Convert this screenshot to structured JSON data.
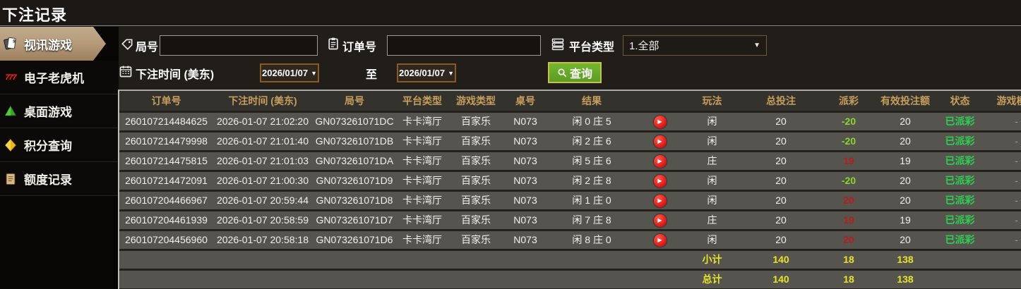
{
  "page": {
    "title": "下注记录"
  },
  "sidebar": {
    "items": [
      {
        "id": "video-games",
        "label": "视讯游戏",
        "icon": "playing-cards-icon",
        "active": true
      },
      {
        "id": "slots",
        "label": "电子老虎机",
        "icon": "slot-777-icon",
        "active": false
      },
      {
        "id": "table-games",
        "label": "桌面游戏",
        "icon": "table-games-icon",
        "active": false
      },
      {
        "id": "points-query",
        "label": "积分查询",
        "icon": "points-gem-icon",
        "active": false
      },
      {
        "id": "credit-records",
        "label": "额度记录",
        "icon": "credit-notepad-icon",
        "active": false
      }
    ]
  },
  "filters": {
    "round_label": "局号",
    "round_value": "",
    "order_label": "订单号",
    "order_value": "",
    "platform_label": "平台类型",
    "platform_value": "1.全部",
    "time_label": "下注时间 (美东)",
    "date_from": "2026/01/07",
    "to_label": "至",
    "date_to": "2026/01/07",
    "search_label": "查询"
  },
  "table": {
    "headers": [
      {
        "key": "order_no",
        "label": "订单号"
      },
      {
        "key": "bet_time",
        "label": "下注时间 (美东)"
      },
      {
        "key": "round_no",
        "label": "局号"
      },
      {
        "key": "platform",
        "label": "平台类型"
      },
      {
        "key": "game_type",
        "label": "游戏类型"
      },
      {
        "key": "table_no",
        "label": "桌号"
      },
      {
        "key": "result",
        "label": "结果"
      },
      {
        "key": "replay",
        "label": ""
      },
      {
        "key": "play",
        "label": "玩法"
      },
      {
        "key": "total_bet",
        "label": "总投注"
      },
      {
        "key": "payout",
        "label": "派彩"
      },
      {
        "key": "valid_bet",
        "label": "有效投注额"
      },
      {
        "key": "status",
        "label": "状态"
      },
      {
        "key": "game_mode",
        "label": "游戏模式"
      }
    ],
    "rows": [
      {
        "order_no": "260107214484625",
        "bet_time": "2026-01-07 21:02:20",
        "round_no": "GN073261071DC",
        "platform": "卡卡湾厅",
        "game_type": "百家乐",
        "table_no": "N073",
        "result": "闲 0 庄 5",
        "play": "闲",
        "total_bet": "20",
        "payout": "-20",
        "payout_color": "green",
        "valid_bet": "20",
        "status": "已派彩",
        "game_mode": "-"
      },
      {
        "order_no": "260107214479998",
        "bet_time": "2026-01-07 21:01:40",
        "round_no": "GN073261071DB",
        "platform": "卡卡湾厅",
        "game_type": "百家乐",
        "table_no": "N073",
        "result": "闲 2 庄 6",
        "play": "闲",
        "total_bet": "20",
        "payout": "-20",
        "payout_color": "green",
        "valid_bet": "20",
        "status": "已派彩",
        "game_mode": "-"
      },
      {
        "order_no": "260107214475815",
        "bet_time": "2026-01-07 21:01:03",
        "round_no": "GN073261071DA",
        "platform": "卡卡湾厅",
        "game_type": "百家乐",
        "table_no": "N073",
        "result": "闲 5 庄 6",
        "play": "庄",
        "total_bet": "20",
        "payout": "19",
        "payout_color": "red",
        "valid_bet": "19",
        "status": "已派彩",
        "game_mode": "-"
      },
      {
        "order_no": "260107214472091",
        "bet_time": "2026-01-07 21:00:30",
        "round_no": "GN073261071D9",
        "platform": "卡卡湾厅",
        "game_type": "百家乐",
        "table_no": "N073",
        "result": "闲 2 庄 8",
        "play": "闲",
        "total_bet": "20",
        "payout": "-20",
        "payout_color": "green",
        "valid_bet": "20",
        "status": "已派彩",
        "game_mode": "-"
      },
      {
        "order_no": "260107204466967",
        "bet_time": "2026-01-07 20:59:44",
        "round_no": "GN073261071D8",
        "platform": "卡卡湾厅",
        "game_type": "百家乐",
        "table_no": "N073",
        "result": "闲 1 庄 0",
        "play": "闲",
        "total_bet": "20",
        "payout": "20",
        "payout_color": "red",
        "valid_bet": "20",
        "status": "已派彩",
        "game_mode": "-"
      },
      {
        "order_no": "260107204461939",
        "bet_time": "2026-01-07 20:58:59",
        "round_no": "GN073261071D7",
        "platform": "卡卡湾厅",
        "game_type": "百家乐",
        "table_no": "N073",
        "result": "闲 7 庄 8",
        "play": "庄",
        "total_bet": "20",
        "payout": "19",
        "payout_color": "red",
        "valid_bet": "19",
        "status": "已派彩",
        "game_mode": "-"
      },
      {
        "order_no": "260107204456960",
        "bet_time": "2026-01-07 20:58:18",
        "round_no": "GN073261071D6",
        "platform": "卡卡湾厅",
        "game_type": "百家乐",
        "table_no": "N073",
        "result": "闲 8 庄 0",
        "play": "闲",
        "total_bet": "20",
        "payout": "20",
        "payout_color": "red",
        "valid_bet": "20",
        "status": "已派彩",
        "game_mode": "-"
      }
    ],
    "subtotal": {
      "label": "小计",
      "total_bet": "140",
      "payout": "18",
      "valid_bet": "138"
    },
    "total": {
      "label": "总计",
      "total_bet": "140",
      "payout": "18",
      "valid_bet": "138"
    }
  },
  "colors": {
    "accent_gold": "#c79e5e",
    "active_tab_tan": "#b29877",
    "summary_yellow": "#e8e327",
    "status_green": "#2fce52",
    "payout_negative_green": "#8ad62c",
    "payout_positive_red": "#b71d1d",
    "search_button_green": "#66a629",
    "date_border_orange": "#8a5a22",
    "play_button_red": "#dc1414"
  }
}
